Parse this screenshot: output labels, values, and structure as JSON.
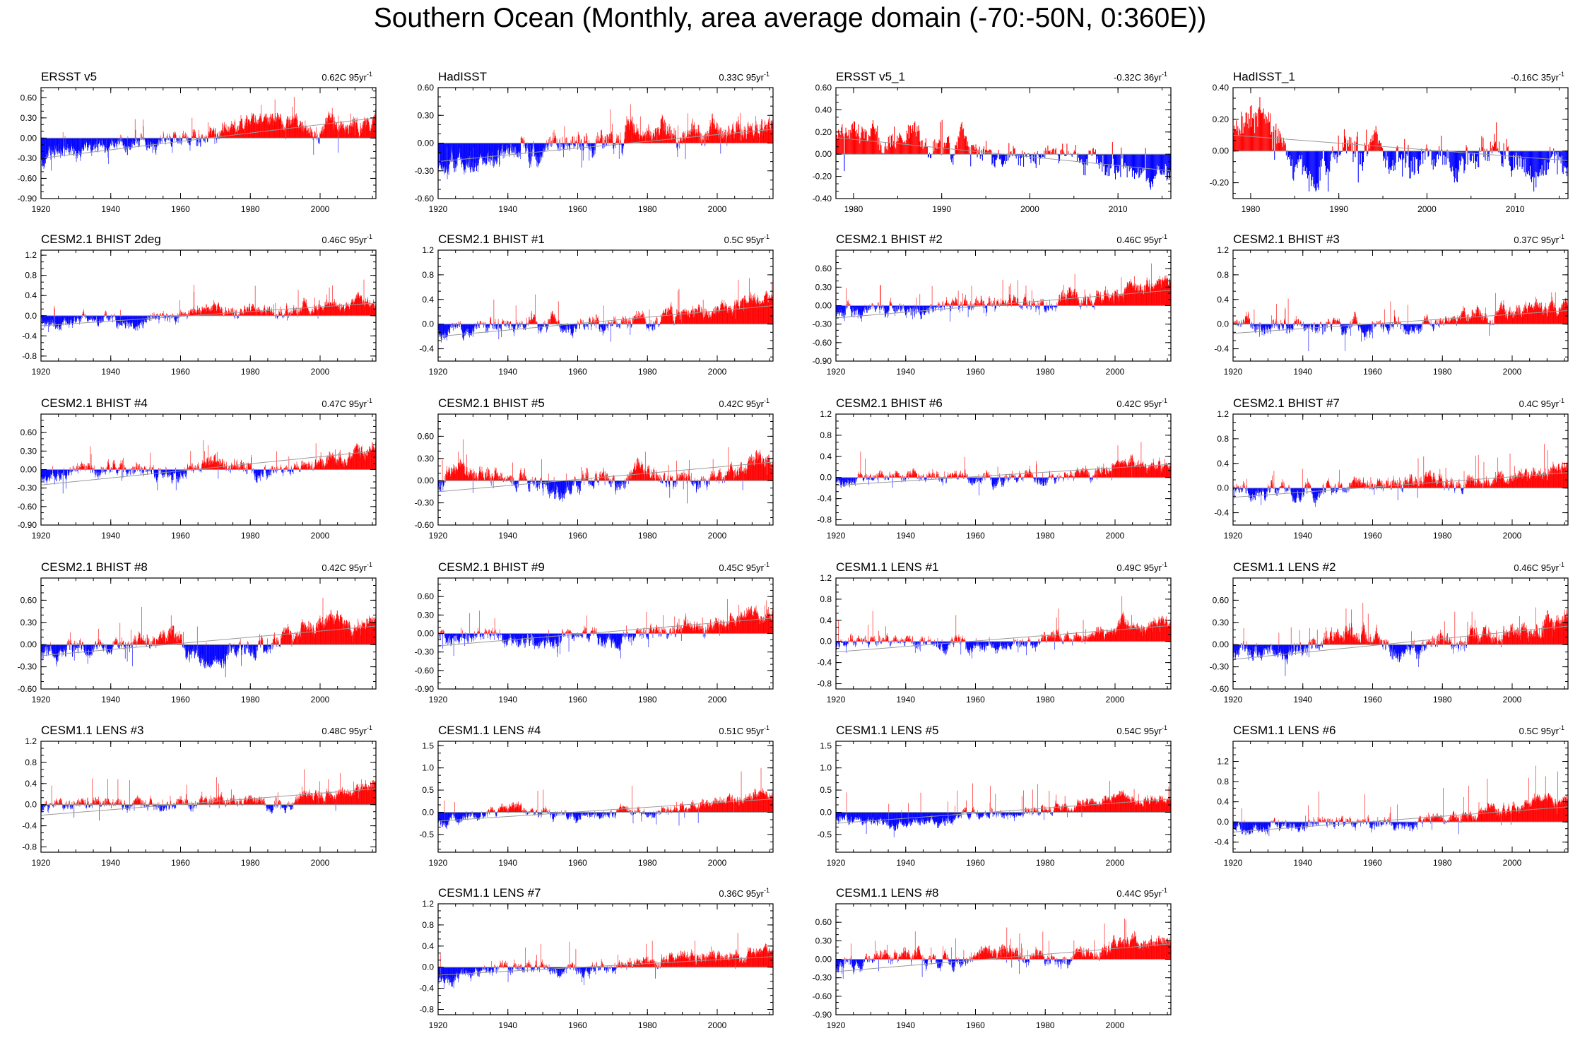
{
  "title": "Southern Ocean (Monthly, area average domain (-70:-50N, 0:360E))",
  "colors": {
    "positive": "#ff0000",
    "negative": "#0000ff",
    "zero_line": "#9a9a9a",
    "trend_line": "#9a9a9a",
    "axis": "#000000"
  },
  "chart_data": [
    {
      "type": "bar",
      "title": "ERSST v5",
      "trend_label": "0.62C 95yr",
      "unit_exp": "-1",
      "xlim": [
        1920,
        2016
      ],
      "xticks": [
        1920,
        1940,
        1960,
        1980,
        2000
      ],
      "ylim": [
        -0.9,
        0.75
      ],
      "yticks": [
        "0.60",
        "0.30",
        "0.00",
        "-0.30",
        "-0.60",
        "-0.90"
      ],
      "trend": [
        -0.3,
        0.3
      ],
      "anchors": [
        [
          1920,
          -0.3
        ],
        [
          1940,
          -0.1
        ],
        [
          1960,
          0.0
        ],
        [
          1975,
          0.2
        ],
        [
          1985,
          0.3
        ],
        [
          2000,
          0.1
        ],
        [
          2016,
          0.3
        ]
      ]
    },
    {
      "type": "bar",
      "title": "HadISST",
      "trend_label": "0.33C 95yr",
      "unit_exp": "-1",
      "xlim": [
        1920,
        2016
      ],
      "xticks": [
        1920,
        1940,
        1960,
        1980,
        2000
      ],
      "ylim": [
        -0.6,
        0.6
      ],
      "yticks": [
        "0.60",
        "0.30",
        "0.00",
        "-0.30",
        "-0.60"
      ],
      "trend": [
        -0.2,
        0.15
      ],
      "anchors": [
        [
          1920,
          -0.25
        ],
        [
          1945,
          -0.05
        ],
        [
          1970,
          0.05
        ],
        [
          1980,
          0.15
        ],
        [
          1990,
          0.1
        ],
        [
          2016,
          0.15
        ]
      ]
    },
    {
      "type": "bar",
      "title": "ERSST v5_1",
      "trend_label": "-0.32C 36yr",
      "unit_exp": "-1",
      "xlim": [
        1978,
        2016
      ],
      "xticks": [
        1980,
        1990,
        2000,
        2010
      ],
      "ylim": [
        -0.4,
        0.6
      ],
      "yticks": [
        "0.60",
        "0.40",
        "0.20",
        "0.00",
        "-0.20",
        "-0.40"
      ],
      "trend": [
        0.15,
        -0.15
      ],
      "anchors": [
        [
          1979,
          0.2
        ],
        [
          1985,
          0.1
        ],
        [
          1995,
          0.05
        ],
        [
          2000,
          -0.05
        ],
        [
          2004,
          0.05
        ],
        [
          2008,
          -0.1
        ],
        [
          2016,
          -0.15
        ]
      ]
    },
    {
      "type": "bar",
      "title": "HadISST_1",
      "trend_label": "-0.16C 35yr",
      "unit_exp": "-1",
      "xlim": [
        1978,
        2016
      ],
      "xticks": [
        1980,
        1990,
        2000,
        2010
      ],
      "ylim": [
        -0.3,
        0.4
      ],
      "yticks": [
        "0.40",
        "0.20",
        "0.00",
        "-0.20"
      ],
      "trend": [
        0.1,
        -0.06
      ],
      "anchors": [
        [
          1979,
          0.1
        ],
        [
          1983,
          0.1
        ],
        [
          1986,
          -0.05
        ],
        [
          1992,
          0.05
        ],
        [
          2000,
          -0.05
        ],
        [
          2005,
          0.02
        ],
        [
          2016,
          -0.1
        ]
      ]
    },
    {
      "type": "bar",
      "title": "CESM2.1 BHIST 2deg",
      "trend_label": "0.46C 95yr",
      "unit_exp": "-1",
      "xlim": [
        1920,
        2016
      ],
      "xticks": [
        1920,
        1940,
        1960,
        1980,
        2000
      ],
      "ylim": [
        -0.9,
        1.3
      ],
      "yticks": [
        "1.2",
        "0.8",
        "0.4",
        "0.0",
        "-0.4",
        "-0.8"
      ],
      "trend": [
        -0.2,
        0.25
      ],
      "anchors": [
        [
          1920,
          -0.1
        ],
        [
          1950,
          -0.1
        ],
        [
          1970,
          0.1
        ],
        [
          1990,
          0.0
        ],
        [
          2016,
          0.35
        ]
      ]
    },
    {
      "type": "bar",
      "title": "CESM2.1 BHIST #1",
      "trend_label": "0.5C 95yr",
      "unit_exp": "-1",
      "xlim": [
        1920,
        2016
      ],
      "xticks": [
        1920,
        1940,
        1960,
        1980,
        2000
      ],
      "ylim": [
        -0.6,
        1.2
      ],
      "yticks": [
        "1.2",
        "0.8",
        "0.4",
        "0.0",
        "-0.4"
      ],
      "trend": [
        -0.2,
        0.3
      ],
      "anchors": [
        [
          1920,
          -0.15
        ],
        [
          1940,
          0.05
        ],
        [
          1960,
          -0.05
        ],
        [
          1985,
          0.1
        ],
        [
          2016,
          0.4
        ]
      ]
    },
    {
      "type": "bar",
      "title": "CESM2.1 BHIST #2",
      "trend_label": "0.46C 95yr",
      "unit_exp": "-1",
      "xlim": [
        1920,
        2016
      ],
      "xticks": [
        1920,
        1940,
        1960,
        1980,
        2000
      ],
      "ylim": [
        -0.9,
        0.9
      ],
      "yticks": [
        "0.60",
        "0.30",
        "0.00",
        "-0.30",
        "-0.60",
        "-0.90"
      ],
      "trend": [
        -0.2,
        0.25
      ],
      "anchors": [
        [
          1920,
          -0.1
        ],
        [
          1945,
          -0.05
        ],
        [
          1970,
          0.05
        ],
        [
          1990,
          0.1
        ],
        [
          2016,
          0.35
        ]
      ]
    },
    {
      "type": "bar",
      "title": "CESM2.1 BHIST #3",
      "trend_label": "0.37C 95yr",
      "unit_exp": "-1",
      "xlim": [
        1920,
        2016
      ],
      "xticks": [
        1920,
        1940,
        1960,
        1980,
        2000
      ],
      "ylim": [
        -0.6,
        1.2
      ],
      "yticks": [
        "1.2",
        "0.8",
        "0.4",
        "0.0",
        "-0.4"
      ],
      "trend": [
        -0.15,
        0.22
      ],
      "anchors": [
        [
          1920,
          0.0
        ],
        [
          1945,
          -0.05
        ],
        [
          1960,
          -0.1
        ],
        [
          1985,
          0.1
        ],
        [
          2016,
          0.25
        ]
      ]
    },
    {
      "type": "bar",
      "title": "CESM2.1 BHIST #4",
      "trend_label": "0.47C 95yr",
      "unit_exp": "-1",
      "xlim": [
        1920,
        2016
      ],
      "xticks": [
        1920,
        1940,
        1960,
        1980,
        2000
      ],
      "ylim": [
        -0.9,
        0.9
      ],
      "yticks": [
        "0.60",
        "0.30",
        "0.00",
        "-0.30",
        "-0.60",
        "-0.90"
      ],
      "trend": [
        -0.25,
        0.3
      ],
      "anchors": [
        [
          1920,
          -0.15
        ],
        [
          1935,
          0.05
        ],
        [
          1955,
          -0.05
        ],
        [
          1970,
          0.1
        ],
        [
          1985,
          -0.05
        ],
        [
          2016,
          0.35
        ]
      ]
    },
    {
      "type": "bar",
      "title": "CESM2.1 BHIST #5",
      "trend_label": "0.42C 95yr",
      "unit_exp": "-1",
      "xlim": [
        1920,
        2016
      ],
      "xticks": [
        1920,
        1940,
        1960,
        1980,
        2000
      ],
      "ylim": [
        -0.6,
        0.9
      ],
      "yticks": [
        "0.60",
        "0.30",
        "0.00",
        "-0.30",
        "-0.60"
      ],
      "trend": [
        -0.15,
        0.25
      ],
      "anchors": [
        [
          1920,
          -0.1
        ],
        [
          1925,
          0.1
        ],
        [
          1945,
          0.05
        ],
        [
          1955,
          -0.1
        ],
        [
          1980,
          0.15
        ],
        [
          1995,
          0.0
        ],
        [
          2016,
          0.3
        ]
      ]
    },
    {
      "type": "bar",
      "title": "CESM2.1 BHIST #6",
      "trend_label": "0.42C 95yr",
      "unit_exp": "-1",
      "xlim": [
        1920,
        2016
      ],
      "xticks": [
        1920,
        1940,
        1960,
        1980,
        2000
      ],
      "ylim": [
        -0.9,
        1.2
      ],
      "yticks": [
        "1.2",
        "0.8",
        "0.4",
        "0.0",
        "-0.4",
        "-0.8"
      ],
      "trend": [
        -0.15,
        0.25
      ],
      "anchors": [
        [
          1920,
          -0.1
        ],
        [
          1940,
          0.05
        ],
        [
          1960,
          -0.05
        ],
        [
          1985,
          0.05
        ],
        [
          2016,
          0.3
        ]
      ]
    },
    {
      "type": "bar",
      "title": "CESM2.1 BHIST #7",
      "trend_label": "0.4C 95yr",
      "unit_exp": "-1",
      "xlim": [
        1920,
        2016
      ],
      "xticks": [
        1920,
        1940,
        1960,
        1980,
        2000
      ],
      "ylim": [
        -0.6,
        1.2
      ],
      "yticks": [
        "1.2",
        "0.8",
        "0.4",
        "0.0",
        "-0.4"
      ],
      "trend": [
        -0.15,
        0.25
      ],
      "anchors": [
        [
          1920,
          -0.05
        ],
        [
          1940,
          -0.05
        ],
        [
          1960,
          0.05
        ],
        [
          1975,
          0.1
        ],
        [
          1995,
          0.1
        ],
        [
          2016,
          0.3
        ]
      ]
    },
    {
      "type": "bar",
      "title": "CESM2.1 BHIST #8",
      "trend_label": "0.42C 95yr",
      "unit_exp": "-1",
      "xlim": [
        1920,
        2016
      ],
      "xticks": [
        1920,
        1940,
        1960,
        1980,
        2000
      ],
      "ylim": [
        -0.6,
        0.9
      ],
      "yticks": [
        "0.60",
        "0.30",
        "0.00",
        "-0.30",
        "-0.60"
      ],
      "trend": [
        -0.15,
        0.25
      ],
      "anchors": [
        [
          1920,
          -0.1
        ],
        [
          1935,
          0.0
        ],
        [
          1958,
          0.15
        ],
        [
          1965,
          -0.2
        ],
        [
          1985,
          0.0
        ],
        [
          2000,
          0.3
        ],
        [
          2016,
          0.3
        ]
      ]
    },
    {
      "type": "bar",
      "title": "CESM2.1 BHIST #9",
      "trend_label": "0.45C 95yr",
      "unit_exp": "-1",
      "xlim": [
        1920,
        2016
      ],
      "xticks": [
        1920,
        1940,
        1960,
        1980,
        2000
      ],
      "ylim": [
        -0.9,
        0.9
      ],
      "yticks": [
        "0.60",
        "0.30",
        "0.00",
        "-0.30",
        "-0.60",
        "-0.90"
      ],
      "trend": [
        -0.2,
        0.25
      ],
      "anchors": [
        [
          1920,
          0.0
        ],
        [
          1945,
          -0.1
        ],
        [
          1965,
          -0.1
        ],
        [
          1980,
          0.0
        ],
        [
          2000,
          0.2
        ],
        [
          2016,
          0.3
        ]
      ]
    },
    {
      "type": "bar",
      "title": "CESM1.1 LENS #1",
      "trend_label": "0.49C 95yr",
      "unit_exp": "-1",
      "xlim": [
        1920,
        2016
      ],
      "xticks": [
        1920,
        1940,
        1960,
        1980,
        2000
      ],
      "ylim": [
        -0.9,
        1.2
      ],
      "yticks": [
        "1.2",
        "0.8",
        "0.4",
        "0.0",
        "-0.4",
        "-0.8"
      ],
      "trend": [
        -0.2,
        0.3
      ],
      "anchors": [
        [
          1920,
          -0.05
        ],
        [
          1940,
          0.05
        ],
        [
          1965,
          -0.1
        ],
        [
          1985,
          0.05
        ],
        [
          2016,
          0.35
        ]
      ]
    },
    {
      "type": "bar",
      "title": "CESM1.1 LENS #2",
      "trend_label": "0.46C 95yr",
      "unit_exp": "-1",
      "xlim": [
        1920,
        2016
      ],
      "xticks": [
        1920,
        1940,
        1960,
        1980,
        2000
      ],
      "ylim": [
        -0.6,
        0.9
      ],
      "yticks": [
        "0.60",
        "0.30",
        "0.00",
        "-0.30",
        "-0.60"
      ],
      "trend": [
        -0.2,
        0.25
      ],
      "anchors": [
        [
          1920,
          -0.15
        ],
        [
          1945,
          0.0
        ],
        [
          1955,
          0.2
        ],
        [
          1965,
          -0.1
        ],
        [
          1985,
          0.05
        ],
        [
          2016,
          0.3
        ]
      ]
    },
    {
      "type": "bar",
      "title": "CESM1.1 LENS #3",
      "trend_label": "0.48C 95yr",
      "unit_exp": "-1",
      "xlim": [
        1920,
        2016
      ],
      "xticks": [
        1920,
        1940,
        1960,
        1980,
        2000
      ],
      "ylim": [
        -0.9,
        1.2
      ],
      "yticks": [
        "1.2",
        "0.8",
        "0.4",
        "0.0",
        "-0.4",
        "-0.8"
      ],
      "trend": [
        -0.2,
        0.3
      ],
      "anchors": [
        [
          1920,
          -0.1
        ],
        [
          1935,
          0.1
        ],
        [
          1955,
          -0.05
        ],
        [
          1970,
          0.1
        ],
        [
          1990,
          0.0
        ],
        [
          2016,
          0.4
        ]
      ]
    },
    {
      "type": "bar",
      "title": "CESM1.1 LENS #4",
      "trend_label": "0.51C 95yr",
      "unit_exp": "-1",
      "xlim": [
        1920,
        2016
      ],
      "xticks": [
        1920,
        1940,
        1960,
        1980,
        2000
      ],
      "ylim": [
        -0.9,
        1.6
      ],
      "yticks": [
        "1.5",
        "1.0",
        "0.5",
        "0.0",
        "-0.5"
      ],
      "trend": [
        -0.2,
        0.3
      ],
      "anchors": [
        [
          1920,
          -0.2
        ],
        [
          1940,
          0.1
        ],
        [
          1960,
          -0.1
        ],
        [
          1985,
          0.05
        ],
        [
          2016,
          0.4
        ]
      ]
    },
    {
      "type": "bar",
      "title": "CESM1.1 LENS #5",
      "trend_label": "0.54C 95yr",
      "unit_exp": "-1",
      "xlim": [
        1920,
        2016
      ],
      "xticks": [
        1920,
        1940,
        1960,
        1980,
        2000
      ],
      "ylim": [
        -0.9,
        1.6
      ],
      "yticks": [
        "1.5",
        "1.0",
        "0.5",
        "0.0",
        "-0.5"
      ],
      "trend": [
        -0.25,
        0.3
      ],
      "anchors": [
        [
          1920,
          -0.1
        ],
        [
          1935,
          -0.3
        ],
        [
          1960,
          -0.05
        ],
        [
          1985,
          0.05
        ],
        [
          2000,
          0.3
        ],
        [
          2016,
          0.3
        ]
      ]
    },
    {
      "type": "bar",
      "title": "CESM1.1 LENS #6",
      "trend_label": "0.5C 95yr",
      "unit_exp": "-1",
      "xlim": [
        1920,
        2016
      ],
      "xticks": [
        1920,
        1940,
        1960,
        1980,
        2000
      ],
      "ylim": [
        -0.6,
        1.6
      ],
      "yticks": [
        "1.2",
        "0.8",
        "0.4",
        "0.0",
        "-0.4"
      ],
      "trend": [
        -0.2,
        0.3
      ],
      "anchors": [
        [
          1920,
          -0.2
        ],
        [
          1945,
          0.0
        ],
        [
          1965,
          -0.1
        ],
        [
          1985,
          0.1
        ],
        [
          2010,
          0.5
        ],
        [
          2016,
          0.35
        ]
      ]
    },
    {
      "type": "bar",
      "title": "CESM1.1 LENS #7",
      "trend_label": "0.36C 95yr",
      "unit_exp": "-1",
      "xlim": [
        1920,
        2016
      ],
      "xticks": [
        1920,
        1940,
        1960,
        1980,
        2000
      ],
      "ylim": [
        -0.9,
        1.2
      ],
      "yticks": [
        "1.2",
        "0.8",
        "0.4",
        "0.0",
        "-0.4",
        "-0.8"
      ],
      "trend": [
        -0.15,
        0.2
      ],
      "anchors": [
        [
          1920,
          -0.3
        ],
        [
          1935,
          0.05
        ],
        [
          1960,
          -0.05
        ],
        [
          1985,
          0.1
        ],
        [
          2016,
          0.35
        ]
      ]
    },
    {
      "type": "bar",
      "title": "CESM1.1 LENS #8",
      "trend_label": "0.44C 95yr",
      "unit_exp": "-1",
      "xlim": [
        1920,
        2016
      ],
      "xticks": [
        1920,
        1940,
        1960,
        1980,
        2000
      ],
      "ylim": [
        -0.9,
        0.9
      ],
      "yticks": [
        "0.60",
        "0.30",
        "0.00",
        "-0.30",
        "-0.60",
        "-0.90"
      ],
      "trend": [
        -0.2,
        0.25
      ],
      "anchors": [
        [
          1920,
          -0.2
        ],
        [
          1935,
          0.1
        ],
        [
          1955,
          -0.05
        ],
        [
          1965,
          0.1
        ],
        [
          1985,
          0.05
        ],
        [
          2016,
          0.35
        ]
      ]
    }
  ]
}
